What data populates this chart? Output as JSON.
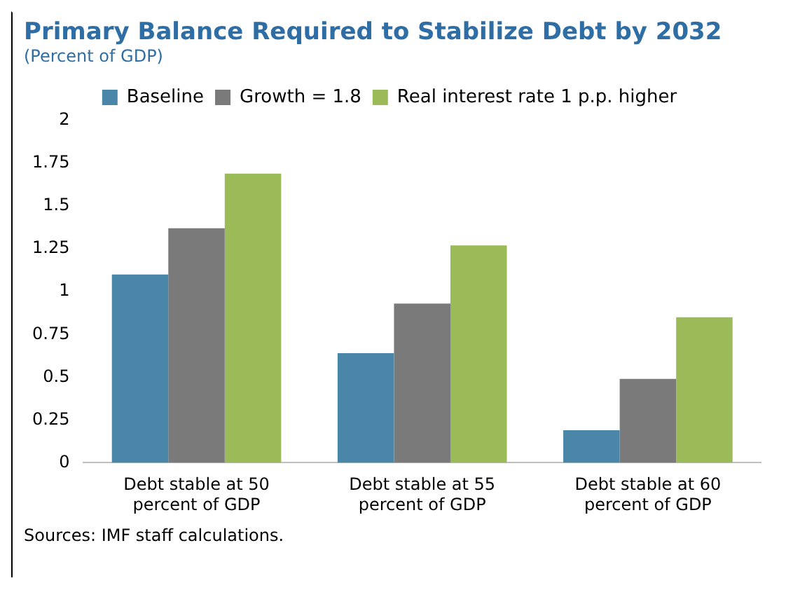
{
  "chart_data": {
    "type": "bar",
    "title": "Primary Balance Required to Stabilize Debt by 2032",
    "subtitle": "(Percent of GDP)",
    "categories": [
      "Debt stable at 50 percent of GDP",
      "Debt stable at 55 percent of GDP",
      "Debt stable at 60 percent of GDP"
    ],
    "series": [
      {
        "name": "Baseline",
        "color": "#4a86a8",
        "values": [
          1.1,
          0.64,
          0.19
        ]
      },
      {
        "name": "Growth = 1.8",
        "color": "#7a7a7a",
        "values": [
          1.37,
          0.93,
          0.49
        ]
      },
      {
        "name": "Real interest rate 1 p.p. higher",
        "color": "#9bbb59",
        "values": [
          1.69,
          1.27,
          0.85
        ]
      }
    ],
    "ylim": [
      0,
      2
    ],
    "yticks": [
      0,
      0.25,
      0.5,
      0.75,
      1,
      1.25,
      1.5,
      1.75,
      2
    ],
    "grid": false,
    "legend": "top",
    "annotations": [
      "Sources: IMF staff calculations."
    ]
  }
}
